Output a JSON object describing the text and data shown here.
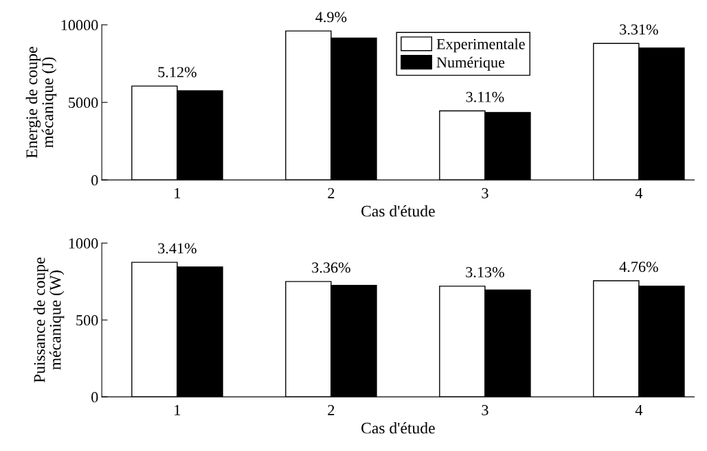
{
  "chart_data": [
    {
      "type": "bar",
      "xlabel": "Cas d'étude",
      "ylabel": "Energie de coupe\nmécanique (J)",
      "categories": [
        "1",
        "2",
        "3",
        "4"
      ],
      "series": [
        {
          "name": "Experimentale",
          "color": "#ffffff",
          "values": [
            6050,
            9600,
            4450,
            8800
          ]
        },
        {
          "name": "Numérique",
          "color": "#000000",
          "values": [
            5750,
            9150,
            4350,
            8500
          ]
        }
      ],
      "ylim": [
        0,
        10000
      ],
      "yticks": [
        0,
        5000,
        10000
      ],
      "legend": "top",
      "grid": false,
      "annotations": [
        {
          "text": "5.12%",
          "x": "1",
          "y": 6050
        },
        {
          "text": "4.9%",
          "x": "2",
          "y": 9600
        },
        {
          "text": "3.11%",
          "x": "3",
          "y": 4450
        },
        {
          "text": "3.31%",
          "x": "4",
          "y": 8800
        }
      ]
    },
    {
      "type": "bar",
      "xlabel": "Cas d'étude",
      "ylabel": "Puissance de coupe\nmécanique (W)",
      "categories": [
        "1",
        "2",
        "3",
        "4"
      ],
      "series": [
        {
          "color": "#ffffff",
          "values": [
            875,
            750,
            720,
            755
          ]
        },
        {
          "color": "#000000",
          "values": [
            845,
            725,
            695,
            720
          ]
        }
      ],
      "ylim": [
        0,
        1000
      ],
      "yticks": [
        0,
        500,
        1000
      ],
      "grid": false,
      "annotations": [
        {
          "text": "3.41%",
          "x": "1",
          "y": 875
        },
        {
          "text": "3.36%",
          "x": "2",
          "y": 750
        },
        {
          "text": "3.13%",
          "x": "3",
          "y": 720
        },
        {
          "text": "4.76%",
          "x": "4",
          "y": 755
        }
      ]
    }
  ]
}
